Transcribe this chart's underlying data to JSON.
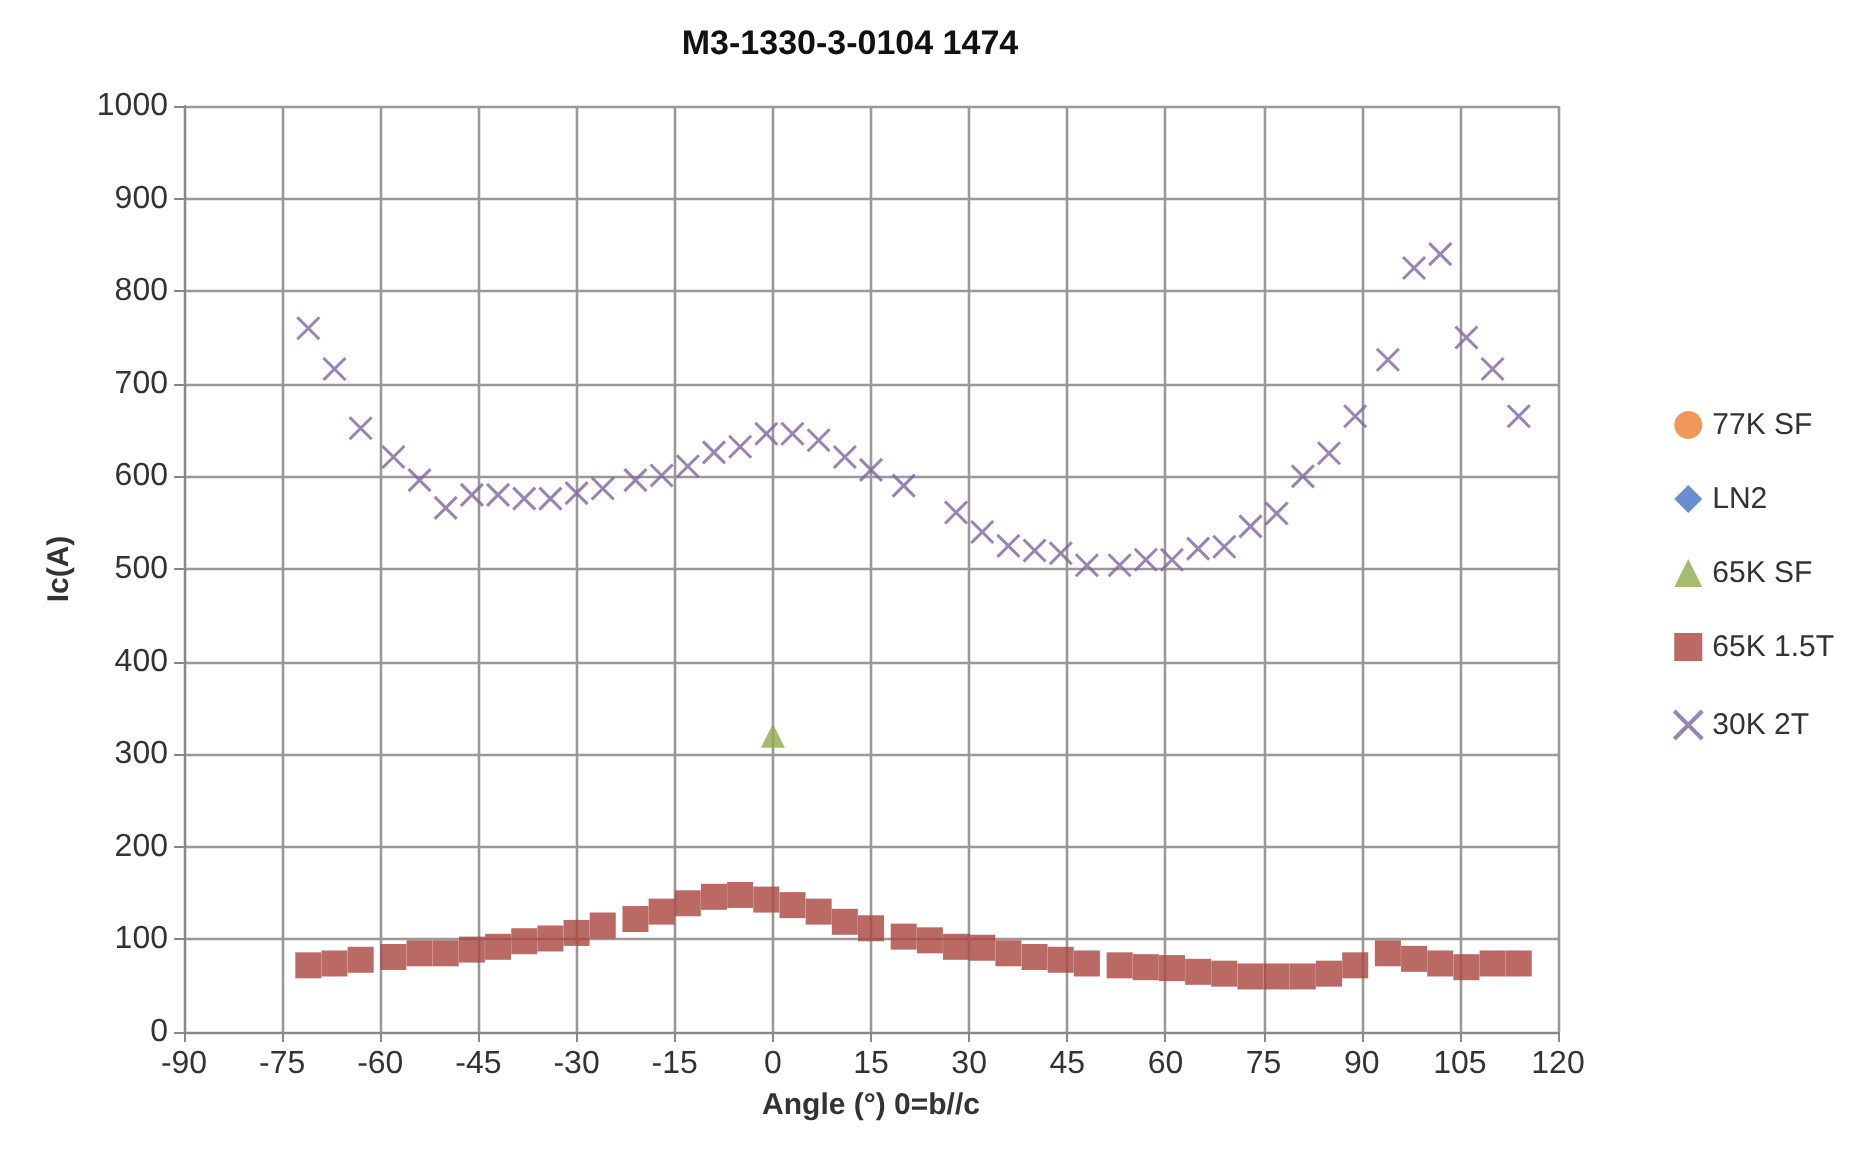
{
  "chart_data": {
    "type": "scatter",
    "title": "M3-1330-3-0104 1474",
    "xlabel": "Angle (°) 0=b//c",
    "ylabel": "Ic(A)",
    "xlim": [
      -90,
      120
    ],
    "xticks": [
      -90,
      -75,
      -60,
      -45,
      -30,
      -15,
      0,
      15,
      30,
      45,
      60,
      75,
      90,
      105,
      120
    ],
    "ylim": [
      0,
      1000
    ],
    "yticks": [
      0,
      100,
      200,
      300,
      400,
      500,
      600,
      700,
      800,
      900,
      1000
    ],
    "grid": true,
    "legend": "right",
    "series": [
      {
        "name": "77K SF",
        "color": "#ed7d31",
        "marker": "circle",
        "x": [
          null
        ],
        "values": [
          null
        ]
      },
      {
        "name": "LN2",
        "color": "#4472c4",
        "marker": "diamond",
        "x": [
          null
        ],
        "values": [
          null
        ]
      },
      {
        "name": "65K SF",
        "color": "#8faa4b",
        "marker": "triangle",
        "x": [
          0
        ],
        "values": [
          320
        ]
      },
      {
        "name": "65K 1.5T",
        "color": "#a9443f",
        "marker": "square",
        "x": [
          -71,
          -67,
          -63,
          -58,
          -54,
          -50,
          -46,
          -42,
          -38,
          -34,
          -30,
          -26,
          -21,
          -17,
          -13,
          -9,
          -5,
          -1,
          3,
          7,
          11,
          15,
          20,
          24,
          28,
          32,
          36,
          40,
          44,
          48,
          53,
          57,
          61,
          65,
          69,
          73,
          77,
          81,
          85,
          89,
          94,
          98,
          102,
          106,
          110,
          114
        ],
        "values": [
          72,
          74,
          78,
          81,
          85,
          85,
          89,
          92,
          98,
          101,
          107,
          115,
          122,
          130,
          139,
          146,
          148,
          143,
          137,
          130,
          119,
          112,
          103,
          99,
          92,
          91,
          85,
          81,
          78,
          74,
          72,
          70,
          69,
          65,
          63,
          60,
          60,
          60,
          63,
          72,
          85,
          79,
          74,
          70,
          74,
          74
        ]
      },
      {
        "name": "30K 2T",
        "color": "#8064a2",
        "marker": "cross",
        "x": [
          -71,
          -67,
          -63,
          -58,
          -54,
          -50,
          -46,
          -42,
          -38,
          -34,
          -30,
          -26,
          -21,
          -17,
          -13,
          -9,
          -5,
          -1,
          3,
          7,
          11,
          15,
          20,
          28,
          32,
          36,
          40,
          44,
          48,
          53,
          57,
          61,
          65,
          69,
          73,
          77,
          81,
          85,
          89,
          94,
          98,
          102,
          106,
          110,
          114
        ],
        "values": [
          760,
          716,
          652,
          621,
          596,
          566,
          580,
          580,
          576,
          576,
          582,
          587,
          596,
          601,
          611,
          626,
          632,
          646,
          646,
          639,
          621,
          607,
          590,
          561,
          540,
          525,
          520,
          517,
          504,
          504,
          510,
          510,
          522,
          524,
          546,
          560,
          600,
          625,
          665,
          726,
          825,
          840,
          750,
          716,
          665
        ]
      }
    ]
  }
}
